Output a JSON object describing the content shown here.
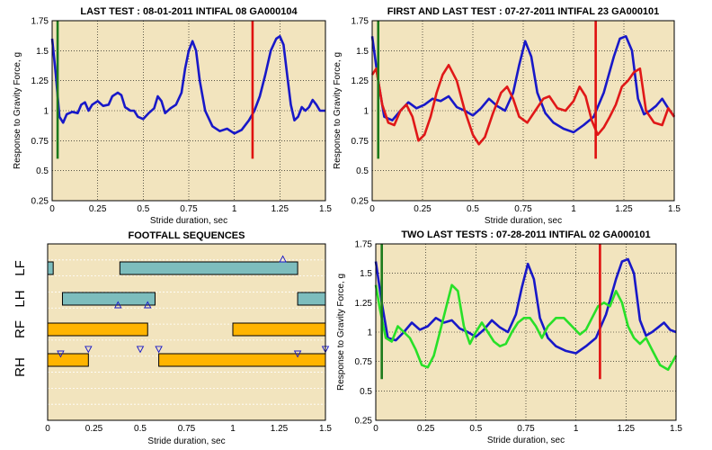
{
  "chart_data": [
    {
      "type": "line",
      "title": "LAST TEST : 08-01-2011 INTIFAL 08 GA000104",
      "xlabel": "Stride duration, sec",
      "ylabel": "Response to Gravity Force, g",
      "xlim": [
        0,
        1.5
      ],
      "ylim": [
        0.25,
        1.75
      ],
      "xticks": [
        "0",
        "0.25",
        "0.5",
        "0.75",
        "1",
        "1.25",
        "1.5"
      ],
      "yticks": [
        "0.25",
        "0.5",
        "0.75",
        "1",
        "1.25",
        "1.5",
        "1.75"
      ],
      "grid": true,
      "background": "#f2e4be",
      "markers": [
        {
          "x": 0.03,
          "y0": 0.6,
          "y1": 1.75,
          "color": "#1c7a1c"
        },
        {
          "x": 1.1,
          "y0": 0.6,
          "y1": 1.75,
          "color": "#e01010"
        }
      ],
      "series": [
        {
          "color": "#1818c8",
          "x": [
            0,
            0.02,
            0.04,
            0.06,
            0.08,
            0.11,
            0.14,
            0.16,
            0.18,
            0.2,
            0.22,
            0.25,
            0.28,
            0.31,
            0.33,
            0.36,
            0.38,
            0.4,
            0.43,
            0.45,
            0.47,
            0.5,
            0.53,
            0.56,
            0.58,
            0.6,
            0.62,
            0.65,
            0.68,
            0.71,
            0.73,
            0.75,
            0.77,
            0.79,
            0.81,
            0.84,
            0.88,
            0.92,
            0.96,
            1.0,
            1.04,
            1.08,
            1.11,
            1.14,
            1.17,
            1.2,
            1.23,
            1.25,
            1.27,
            1.29,
            1.31,
            1.33,
            1.35,
            1.37,
            1.39,
            1.41,
            1.43,
            1.45,
            1.47,
            1.5
          ],
          "y": [
            1.6,
            1.3,
            0.95,
            0.9,
            0.97,
            0.99,
            0.98,
            1.05,
            1.07,
            1.0,
            1.05,
            1.08,
            1.04,
            1.05,
            1.12,
            1.15,
            1.13,
            1.03,
            1.0,
            1.0,
            0.95,
            0.93,
            0.98,
            1.02,
            1.12,
            1.08,
            0.98,
            1.02,
            1.05,
            1.15,
            1.35,
            1.5,
            1.58,
            1.5,
            1.25,
            1.0,
            0.87,
            0.83,
            0.85,
            0.81,
            0.84,
            0.92,
            1.0,
            1.12,
            1.3,
            1.5,
            1.6,
            1.62,
            1.55,
            1.3,
            1.05,
            0.92,
            0.95,
            1.03,
            1.0,
            1.03,
            1.09,
            1.05,
            1.0,
            1.0
          ]
        }
      ]
    },
    {
      "type": "line",
      "title": "FIRST AND LAST TEST : 07-27-2011 INTIFAL 23 GA000101",
      "xlabel": "Stride duration, sec",
      "ylabel": "Response to Gravity Force, g",
      "xlim": [
        0,
        1.5
      ],
      "ylim": [
        0.25,
        1.75
      ],
      "xticks": [
        "0",
        "0.25",
        "0.5",
        "0.75",
        "1",
        "1.25",
        "1.5"
      ],
      "yticks": [
        "0.25",
        "0.5",
        "0.75",
        "1",
        "1.25",
        "1.5",
        "1.75"
      ],
      "grid": true,
      "background": "#f2e4be",
      "markers": [
        {
          "x": 0.03,
          "y0": 0.6,
          "y1": 1.75,
          "color": "#1c7a1c"
        },
        {
          "x": 1.11,
          "y0": 0.6,
          "y1": 1.75,
          "color": "#e01010"
        }
      ],
      "series": [
        {
          "color": "#1818c8",
          "x": [
            0,
            0.03,
            0.06,
            0.1,
            0.14,
            0.18,
            0.22,
            0.26,
            0.3,
            0.34,
            0.38,
            0.42,
            0.46,
            0.5,
            0.54,
            0.58,
            0.62,
            0.66,
            0.7,
            0.73,
            0.76,
            0.79,
            0.82,
            0.86,
            0.9,
            0.95,
            1.0,
            1.05,
            1.1,
            1.15,
            1.2,
            1.23,
            1.26,
            1.29,
            1.32,
            1.35,
            1.38,
            1.41,
            1.44,
            1.47,
            1.5
          ],
          "y": [
            1.62,
            1.25,
            0.95,
            0.92,
            1.0,
            1.07,
            1.02,
            1.05,
            1.1,
            1.08,
            1.12,
            1.03,
            1.0,
            0.96,
            1.02,
            1.1,
            1.04,
            1.0,
            1.15,
            1.38,
            1.58,
            1.45,
            1.15,
            0.98,
            0.9,
            0.85,
            0.82,
            0.88,
            0.95,
            1.15,
            1.45,
            1.6,
            1.62,
            1.5,
            1.1,
            0.97,
            1.0,
            1.04,
            1.1,
            1.02,
            0.95
          ]
        },
        {
          "color": "#e01818",
          "x": [
            0,
            0.02,
            0.05,
            0.08,
            0.11,
            0.14,
            0.17,
            0.2,
            0.23,
            0.26,
            0.29,
            0.32,
            0.35,
            0.38,
            0.42,
            0.46,
            0.5,
            0.53,
            0.56,
            0.6,
            0.64,
            0.67,
            0.7,
            0.73,
            0.77,
            0.81,
            0.85,
            0.88,
            0.92,
            0.96,
            1.0,
            1.03,
            1.06,
            1.09,
            1.12,
            1.15,
            1.18,
            1.21,
            1.24,
            1.27,
            1.3,
            1.33,
            1.36,
            1.4,
            1.44,
            1.47,
            1.5
          ],
          "y": [
            1.3,
            1.35,
            1.05,
            0.9,
            0.88,
            1.0,
            1.05,
            0.95,
            0.75,
            0.8,
            0.95,
            1.15,
            1.3,
            1.38,
            1.25,
            1.0,
            0.8,
            0.72,
            0.78,
            0.98,
            1.15,
            1.2,
            1.1,
            0.95,
            0.9,
            1.0,
            1.1,
            1.12,
            1.02,
            1.0,
            1.08,
            1.2,
            1.12,
            0.92,
            0.8,
            0.86,
            0.95,
            1.05,
            1.2,
            1.25,
            1.32,
            1.35,
            1.0,
            0.9,
            0.88,
            1.02,
            0.95
          ]
        }
      ]
    },
    {
      "type": "gantt",
      "title": "FOOTFALL SEQUENCES",
      "xlabel": "Stride duration, sec",
      "xlim": [
        0,
        1.5
      ],
      "xticks": [
        "0",
        "0.25",
        "0.5",
        "0.75",
        "1",
        "1.25",
        "1.5"
      ],
      "background": "#f2e4be",
      "lanes": [
        "LF",
        "LH",
        "RF",
        "RH"
      ],
      "bars": [
        {
          "lane": 0,
          "start": 0.0,
          "end": 0.03,
          "color": "#7dbdbd"
        },
        {
          "lane": 0,
          "start": 0.39,
          "end": 1.35,
          "color": "#7dbdbd"
        },
        {
          "lane": 1,
          "start": 0.08,
          "end": 0.58,
          "color": "#7dbdbd"
        },
        {
          "lane": 1,
          "start": 1.35,
          "end": 1.5,
          "color": "#7dbdbd"
        },
        {
          "lane": 2,
          "start": 0.0,
          "end": 0.54,
          "color": "#ffb400"
        },
        {
          "lane": 2,
          "start": 1.0,
          "end": 1.5,
          "color": "#ffb400"
        },
        {
          "lane": 3,
          "start": 0.0,
          "end": 0.22,
          "color": "#ffb400"
        },
        {
          "lane": 3,
          "start": 0.6,
          "end": 1.5,
          "color": "#ffb400"
        }
      ],
      "triangles_up": [
        {
          "x": 1.27,
          "lane": 0
        },
        {
          "x": 0.38,
          "lane": 1.5
        },
        {
          "x": 0.54,
          "lane": 1.5
        }
      ],
      "triangles_down": [
        {
          "x": 0.07,
          "lane": 2.5
        },
        {
          "x": 0.22,
          "lane": 2.35
        },
        {
          "x": 0.5,
          "lane": 2.35
        },
        {
          "x": 0.6,
          "lane": 2.35
        },
        {
          "x": 1.35,
          "lane": 2.5
        },
        {
          "x": 1.5,
          "lane": 2.35
        }
      ]
    },
    {
      "type": "line",
      "title": "TWO LAST TESTS : 07-28-2011 INTIFAL 02 GA000101",
      "xlabel": "Stride duration, sec",
      "ylabel": "Response to Gravity Force, g",
      "xlim": [
        0,
        1.5
      ],
      "ylim": [
        0.25,
        1.75
      ],
      "xticks": [
        "0",
        "0.25",
        "0.5",
        "0.75",
        "1",
        "1.25",
        "1.5"
      ],
      "yticks": [
        "0.25",
        "0.5",
        "0.75",
        "1",
        "1.25",
        "1.5",
        "1.75"
      ],
      "grid": true,
      "background": "#f2e4be",
      "markers": [
        {
          "x": 0.03,
          "y0": 0.6,
          "y1": 1.75,
          "color": "#1c7a1c"
        },
        {
          "x": 1.12,
          "y0": 0.6,
          "y1": 1.75,
          "color": "#e01010"
        }
      ],
      "series": [
        {
          "color": "#1818c8",
          "x": [
            0,
            0.03,
            0.06,
            0.1,
            0.14,
            0.18,
            0.22,
            0.26,
            0.3,
            0.34,
            0.38,
            0.42,
            0.46,
            0.5,
            0.54,
            0.58,
            0.62,
            0.66,
            0.7,
            0.73,
            0.76,
            0.79,
            0.82,
            0.86,
            0.9,
            0.95,
            1.0,
            1.05,
            1.1,
            1.15,
            1.2,
            1.23,
            1.26,
            1.29,
            1.32,
            1.35,
            1.38,
            1.41,
            1.44,
            1.47,
            1.5
          ],
          "y": [
            1.6,
            1.25,
            0.95,
            0.93,
            1.0,
            1.08,
            1.02,
            1.05,
            1.12,
            1.08,
            1.1,
            1.03,
            1.0,
            0.96,
            1.02,
            1.1,
            1.04,
            1.0,
            1.15,
            1.38,
            1.58,
            1.45,
            1.12,
            0.95,
            0.88,
            0.84,
            0.82,
            0.88,
            0.95,
            1.15,
            1.45,
            1.6,
            1.62,
            1.5,
            1.1,
            0.97,
            1.0,
            1.04,
            1.08,
            1.02,
            1.0
          ]
        },
        {
          "color": "#28e028",
          "x": [
            0,
            0.02,
            0.05,
            0.08,
            0.11,
            0.14,
            0.17,
            0.2,
            0.23,
            0.26,
            0.29,
            0.32,
            0.35,
            0.38,
            0.41,
            0.44,
            0.47,
            0.5,
            0.53,
            0.56,
            0.59,
            0.62,
            0.65,
            0.68,
            0.71,
            0.74,
            0.77,
            0.8,
            0.83,
            0.86,
            0.9,
            0.94,
            0.98,
            1.02,
            1.05,
            1.08,
            1.11,
            1.14,
            1.17,
            1.2,
            1.23,
            1.26,
            1.29,
            1.32,
            1.35,
            1.38,
            1.42,
            1.46,
            1.5
          ],
          "y": [
            1.4,
            1.2,
            0.95,
            0.92,
            1.05,
            1.0,
            0.95,
            0.85,
            0.72,
            0.7,
            0.8,
            1.0,
            1.2,
            1.4,
            1.35,
            1.05,
            0.9,
            1.0,
            1.08,
            1.0,
            0.92,
            0.88,
            0.9,
            1.0,
            1.08,
            1.12,
            1.12,
            1.05,
            0.95,
            1.05,
            1.12,
            1.12,
            1.05,
            0.98,
            1.02,
            1.12,
            1.22,
            1.25,
            1.22,
            1.35,
            1.25,
            1.05,
            0.95,
            0.9,
            0.95,
            0.85,
            0.72,
            0.68,
            0.8
          ]
        }
      ]
    }
  ]
}
